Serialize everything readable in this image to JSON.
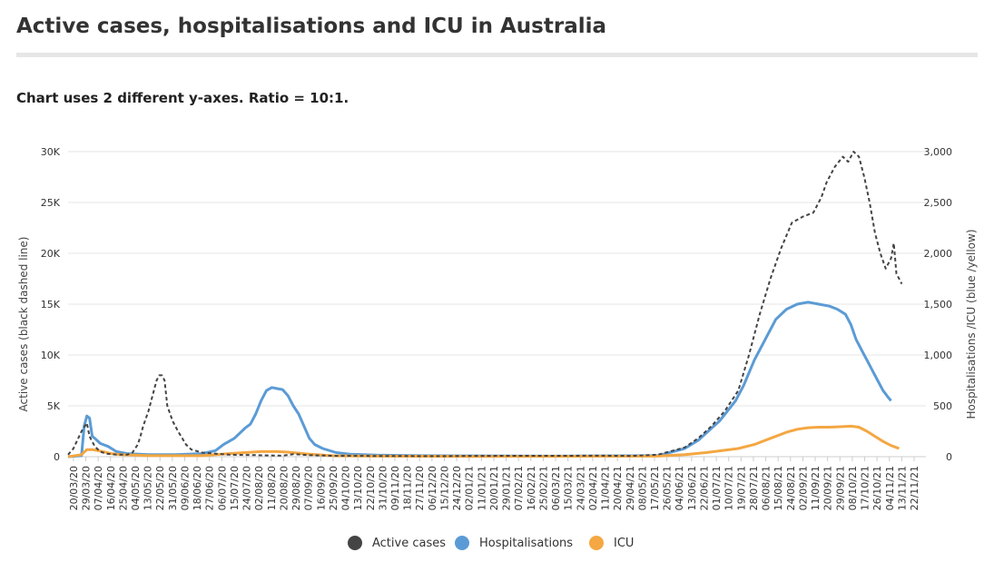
{
  "title": "Active cases, hospitalisations and ICU in Australia",
  "subtitle": "Chart uses 2 different y-axes. Ratio = 10:1.",
  "chart_data": {
    "type": "line",
    "y_left": {
      "label": "Active cases (black dashed line)",
      "ticks": [
        "0",
        "5K",
        "10K",
        "15K",
        "20K",
        "25K",
        "30K"
      ],
      "ylim": [
        0,
        30000
      ]
    },
    "y_right": {
      "label": "Hospitalisations /ICU (blue /yellow)",
      "ticks": [
        "0",
        "500",
        "1,000",
        "1,500",
        "2,000",
        "2,500",
        "3,000"
      ],
      "ylim": [
        0,
        3000
      ]
    },
    "x_ticks": [
      "20/03/20",
      "29/03/20",
      "07/04/20",
      "16/04/20",
      "25/04/20",
      "04/05/20",
      "13/05/20",
      "22/05/20",
      "31/05/20",
      "09/06/20",
      "18/06/20",
      "27/06/20",
      "06/07/20",
      "15/07/20",
      "24/07/20",
      "02/08/20",
      "11/08/20",
      "20/08/20",
      "29/08/20",
      "07/09/20",
      "16/09/20",
      "25/09/20",
      "04/10/20",
      "13/10/20",
      "22/10/20",
      "31/10/20",
      "09/11/20",
      "18/11/20",
      "27/11/20",
      "06/12/20",
      "15/12/20",
      "24/12/20",
      "02/01/21",
      "11/01/21",
      "20/01/21",
      "29/01/21",
      "07/02/21",
      "16/02/21",
      "25/02/21",
      "06/03/21",
      "15/03/21",
      "24/03/21",
      "02/04/21",
      "11/04/21",
      "20/04/21",
      "29/04/21",
      "08/05/21",
      "17/05/21",
      "26/05/21",
      "04/06/21",
      "13/06/21",
      "22/06/21",
      "01/07/21",
      "10/07/21",
      "19/07/21",
      "28/07/21",
      "06/08/21",
      "15/08/21",
      "24/08/21",
      "02/09/21",
      "11/09/21",
      "20/09/21",
      "29/09/21",
      "08/10/21",
      "17/10/21",
      "26/10/21",
      "04/11/21",
      "13/11/21",
      "22/11/21"
    ],
    "series": [
      {
        "name": "Active cases",
        "axis": "left",
        "color": "#444444",
        "style": "dashed",
        "points": [
          [
            0,
            200
          ],
          [
            2,
            800
          ],
          [
            5,
            2500
          ],
          [
            7,
            3300
          ],
          [
            8,
            2000
          ],
          [
            10,
            1000
          ],
          [
            12,
            500
          ],
          [
            14,
            300
          ],
          [
            18,
            200
          ],
          [
            22,
            200
          ],
          [
            24,
            400
          ],
          [
            26,
            1200
          ],
          [
            27,
            2000
          ],
          [
            28,
            3000
          ],
          [
            30,
            4500
          ],
          [
            32,
            6500
          ],
          [
            33,
            7500
          ],
          [
            34,
            8000
          ],
          [
            35,
            8000
          ],
          [
            36,
            7500
          ],
          [
            37,
            5000
          ],
          [
            39,
            3500
          ],
          [
            41,
            2500
          ],
          [
            44,
            1200
          ],
          [
            46,
            700
          ],
          [
            50,
            400
          ],
          [
            60,
            200
          ],
          [
            70,
            150
          ],
          [
            80,
            100
          ],
          [
            84,
            250
          ],
          [
            90,
            150
          ],
          [
            100,
            80
          ],
          [
            140,
            50
          ],
          [
            150,
            80
          ],
          [
            200,
            100
          ],
          [
            210,
            80
          ],
          [
            220,
            200
          ],
          [
            230,
            900
          ],
          [
            235,
            1800
          ],
          [
            240,
            3000
          ],
          [
            245,
            4500
          ],
          [
            250,
            6500
          ],
          [
            254,
            10000
          ],
          [
            258,
            14000
          ],
          [
            262,
            17500
          ],
          [
            266,
            20500
          ],
          [
            270,
            23000
          ],
          [
            274,
            23600
          ],
          [
            278,
            24000
          ],
          [
            281,
            25500
          ],
          [
            283,
            27000
          ],
          [
            286,
            28500
          ],
          [
            289,
            29500
          ],
          [
            291,
            29000
          ],
          [
            293,
            30000
          ],
          [
            295,
            29500
          ],
          [
            297,
            27500
          ],
          [
            299,
            25000
          ],
          [
            301,
            22000
          ],
          [
            303,
            20000
          ],
          [
            305,
            18500
          ],
          [
            307,
            19500
          ],
          [
            308,
            21000
          ],
          [
            309,
            18000
          ],
          [
            311,
            17000
          ]
        ]
      },
      {
        "name": "Hospitalisations",
        "axis": "right",
        "color": "#5b9bd5",
        "style": "solid",
        "points": [
          [
            0,
            0
          ],
          [
            5,
            10
          ],
          [
            6,
            300
          ],
          [
            7,
            400
          ],
          [
            8,
            380
          ],
          [
            9,
            200
          ],
          [
            10,
            180
          ],
          [
            12,
            130
          ],
          [
            15,
            100
          ],
          [
            18,
            50
          ],
          [
            22,
            30
          ],
          [
            30,
            20
          ],
          [
            40,
            20
          ],
          [
            50,
            30
          ],
          [
            55,
            60
          ],
          [
            58,
            120
          ],
          [
            62,
            180
          ],
          [
            66,
            280
          ],
          [
            68,
            320
          ],
          [
            70,
            420
          ],
          [
            72,
            550
          ],
          [
            74,
            650
          ],
          [
            76,
            680
          ],
          [
            78,
            670
          ],
          [
            80,
            660
          ],
          [
            82,
            600
          ],
          [
            84,
            500
          ],
          [
            86,
            420
          ],
          [
            88,
            300
          ],
          [
            90,
            180
          ],
          [
            92,
            120
          ],
          [
            95,
            80
          ],
          [
            100,
            40
          ],
          [
            105,
            25
          ],
          [
            115,
            15
          ],
          [
            130,
            10
          ],
          [
            150,
            8
          ],
          [
            180,
            5
          ],
          [
            220,
            10
          ],
          [
            230,
            80
          ],
          [
            235,
            160
          ],
          [
            240,
            280
          ],
          [
            243,
            350
          ],
          [
            246,
            450
          ],
          [
            249,
            550
          ],
          [
            252,
            700
          ],
          [
            256,
            950
          ],
          [
            260,
            1150
          ],
          [
            264,
            1350
          ],
          [
            268,
            1450
          ],
          [
            272,
            1500
          ],
          [
            276,
            1520
          ],
          [
            280,
            1500
          ],
          [
            284,
            1480
          ],
          [
            287,
            1450
          ],
          [
            290,
            1400
          ],
          [
            292,
            1300
          ],
          [
            294,
            1150
          ],
          [
            296,
            1050
          ],
          [
            298,
            950
          ],
          [
            300,
            850
          ],
          [
            302,
            750
          ],
          [
            304,
            650
          ],
          [
            306,
            580
          ],
          [
            307,
            550
          ]
        ]
      },
      {
        "name": "ICU",
        "axis": "right",
        "color": "#f4a742",
        "style": "solid",
        "points": [
          [
            0,
            0
          ],
          [
            5,
            20
          ],
          [
            7,
            70
          ],
          [
            9,
            70
          ],
          [
            11,
            60
          ],
          [
            13,
            50
          ],
          [
            16,
            30
          ],
          [
            20,
            20
          ],
          [
            30,
            10
          ],
          [
            50,
            10
          ],
          [
            55,
            20
          ],
          [
            60,
            30
          ],
          [
            66,
            40
          ],
          [
            72,
            50
          ],
          [
            78,
            50
          ],
          [
            82,
            45
          ],
          [
            86,
            35
          ],
          [
            90,
            25
          ],
          [
            95,
            15
          ],
          [
            100,
            8
          ],
          [
            115,
            5
          ],
          [
            150,
            3
          ],
          [
            220,
            5
          ],
          [
            230,
            20
          ],
          [
            238,
            40
          ],
          [
            244,
            60
          ],
          [
            250,
            80
          ],
          [
            256,
            120
          ],
          [
            262,
            180
          ],
          [
            268,
            240
          ],
          [
            272,
            270
          ],
          [
            276,
            285
          ],
          [
            280,
            290
          ],
          [
            284,
            290
          ],
          [
            288,
            295
          ],
          [
            292,
            300
          ],
          [
            295,
            290
          ],
          [
            298,
            250
          ],
          [
            301,
            200
          ],
          [
            304,
            150
          ],
          [
            307,
            110
          ],
          [
            310,
            80
          ]
        ]
      }
    ],
    "legend_position": "bottom",
    "grid": true
  }
}
